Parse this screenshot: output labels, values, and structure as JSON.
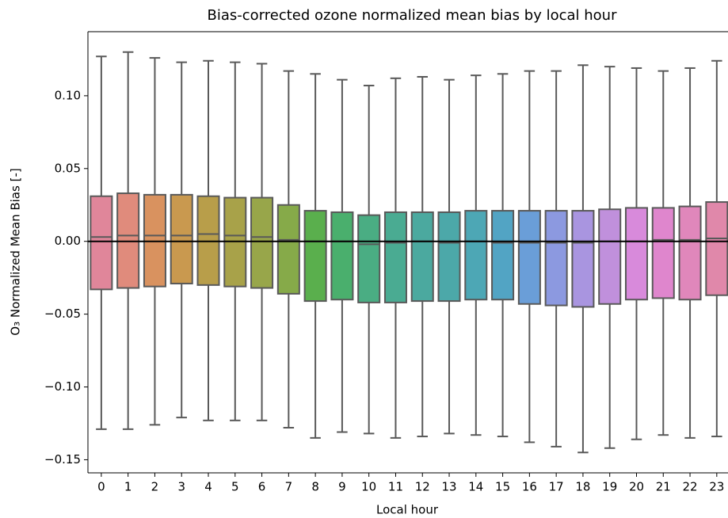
{
  "chart_data": {
    "type": "box",
    "title": "Bias-corrected ozone normalized mean bias by local hour",
    "xlabel": "Local hour",
    "ylabel": "O₃ Normalized Mean Bias [-]",
    "categories": [
      "0",
      "1",
      "2",
      "3",
      "4",
      "5",
      "6",
      "7",
      "8",
      "9",
      "10",
      "11",
      "12",
      "13",
      "14",
      "15",
      "16",
      "17",
      "18",
      "19",
      "20",
      "21",
      "22",
      "23"
    ],
    "whisker_high": [
      0.127,
      0.13,
      0.126,
      0.123,
      0.124,
      0.123,
      0.122,
      0.117,
      0.115,
      0.111,
      0.107,
      0.112,
      0.113,
      0.111,
      0.114,
      0.115,
      0.117,
      0.117,
      0.121,
      0.12,
      0.119,
      0.117,
      0.119,
      0.124
    ],
    "q3": [
      0.031,
      0.033,
      0.032,
      0.032,
      0.031,
      0.03,
      0.03,
      0.025,
      0.021,
      0.02,
      0.018,
      0.02,
      0.02,
      0.02,
      0.021,
      0.021,
      0.021,
      0.021,
      0.021,
      0.022,
      0.023,
      0.023,
      0.024,
      0.027
    ],
    "median": [
      0.003,
      0.004,
      0.004,
      0.004,
      0.005,
      0.004,
      0.003,
      0.001,
      0.0,
      0.0,
      -0.002,
      -0.001,
      0.0,
      -0.001,
      0.0,
      -0.001,
      -0.001,
      -0.001,
      -0.001,
      0.0,
      0.0,
      0.001,
      0.001,
      0.002
    ],
    "q1": [
      -0.033,
      -0.032,
      -0.031,
      -0.029,
      -0.03,
      -0.031,
      -0.032,
      -0.036,
      -0.041,
      -0.04,
      -0.042,
      -0.042,
      -0.041,
      -0.041,
      -0.04,
      -0.04,
      -0.043,
      -0.044,
      -0.045,
      -0.043,
      -0.04,
      -0.039,
      -0.04,
      -0.037
    ],
    "whisker_low": [
      -0.129,
      -0.129,
      -0.126,
      -0.121,
      -0.123,
      -0.123,
      -0.123,
      -0.128,
      -0.135,
      -0.131,
      -0.132,
      -0.135,
      -0.134,
      -0.132,
      -0.133,
      -0.134,
      -0.138,
      -0.141,
      -0.145,
      -0.142,
      -0.136,
      -0.133,
      -0.135,
      -0.134
    ],
    "colors": [
      "#e0869a",
      "#e08b7c",
      "#d9925f",
      "#c9994f",
      "#b89e4a",
      "#a8a249",
      "#98a64a",
      "#86aa49",
      "#5aaf4d",
      "#4aaf6d",
      "#4aad83",
      "#4aab92",
      "#4ba99f",
      "#4ca8a9",
      "#4da7b5",
      "#52a4c4",
      "#6a9ed8",
      "#8c99e0",
      "#a995e0",
      "#c090dc",
      "#d88adb",
      "#df86cd",
      "#e087bb",
      "#e088aa"
    ],
    "line_color": "#595959",
    "hline": 0,
    "xlim": [
      -0.5,
      23.5
    ],
    "ylim": [
      -0.159,
      0.144
    ],
    "yticks": [
      {
        "value": -0.15,
        "label": "−0.15"
      },
      {
        "value": -0.1,
        "label": "−0.10"
      },
      {
        "value": -0.05,
        "label": "−0.05"
      },
      {
        "value": 0.0,
        "label": "0.00"
      },
      {
        "value": 0.05,
        "label": "0.05"
      },
      {
        "value": 0.1,
        "label": "0.10"
      }
    ]
  }
}
